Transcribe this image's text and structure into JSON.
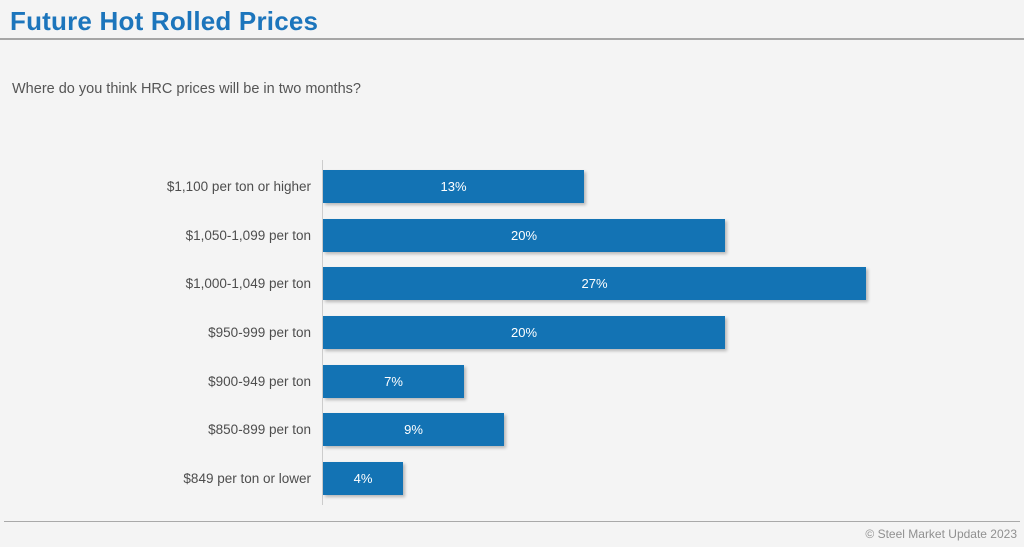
{
  "page": {
    "title": "Future Hot Rolled Prices",
    "question": "Where do you think HRC prices will be in two months?",
    "footer": "© Steel Market Update 2023"
  },
  "colors": {
    "title_blue": "#1c75bc",
    "bar_blue": "#1373b4",
    "background": "#f4f4f4",
    "category_label_gray": "#4d4d4d",
    "value_label_white": "#ffffff",
    "footer_gray": "#909090"
  },
  "chart_data": {
    "type": "bar",
    "orientation": "horizontal",
    "title": "Future Hot Rolled Prices",
    "subtitle": "Where do you think HRC prices will be in two months?",
    "categories": [
      "$1,100 per ton or higher",
      "$1,050-1,099 per ton",
      "$1,000-1,049 per ton",
      "$950-999 per ton",
      "$900-949 per ton",
      "$850-899 per ton",
      "$849 per ton or lower"
    ],
    "values": [
      13,
      20,
      27,
      20,
      7,
      9,
      4
    ],
    "value_labels": [
      "13%",
      "20%",
      "27%",
      "20%",
      "7%",
      "9%",
      "4%"
    ],
    "unit": "%",
    "xlim": [
      0,
      34
    ],
    "grid": false,
    "legend": false,
    "value_label_position": "inside-center"
  }
}
